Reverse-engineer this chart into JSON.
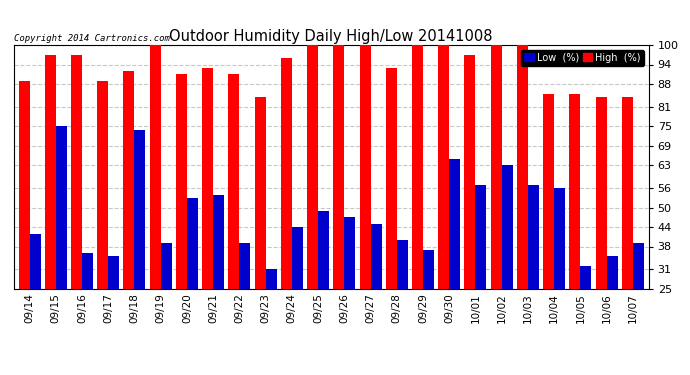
{
  "title": "Outdoor Humidity Daily High/Low 20141008",
  "copyright": "Copyright 2014 Cartronics.com",
  "dates": [
    "09/14",
    "09/15",
    "09/16",
    "09/17",
    "09/18",
    "09/19",
    "09/20",
    "09/21",
    "09/22",
    "09/23",
    "09/24",
    "09/25",
    "09/26",
    "09/27",
    "09/28",
    "09/29",
    "09/30",
    "10/01",
    "10/02",
    "10/03",
    "10/04",
    "10/05",
    "10/06",
    "10/07"
  ],
  "high": [
    89,
    97,
    97,
    89,
    92,
    100,
    91,
    93,
    91,
    84,
    96,
    100,
    100,
    100,
    93,
    100,
    100,
    97,
    100,
    100,
    85,
    85,
    84,
    84
  ],
  "low": [
    42,
    75,
    36,
    35,
    74,
    39,
    53,
    54,
    39,
    31,
    44,
    49,
    47,
    45,
    40,
    37,
    65,
    57,
    63,
    57,
    56,
    32,
    35,
    39
  ],
  "ymin": 25,
  "ymax": 100,
  "yticks": [
    25,
    31,
    38,
    44,
    50,
    56,
    63,
    69,
    75,
    81,
    88,
    94,
    100
  ],
  "high_color": "#ff0000",
  "low_color": "#0000cc",
  "bg_color": "#ffffff",
  "grid_color": "#c8c8c8",
  "bar_width": 0.42,
  "legend_low_label": "Low  (%)",
  "legend_high_label": "High  (%)"
}
